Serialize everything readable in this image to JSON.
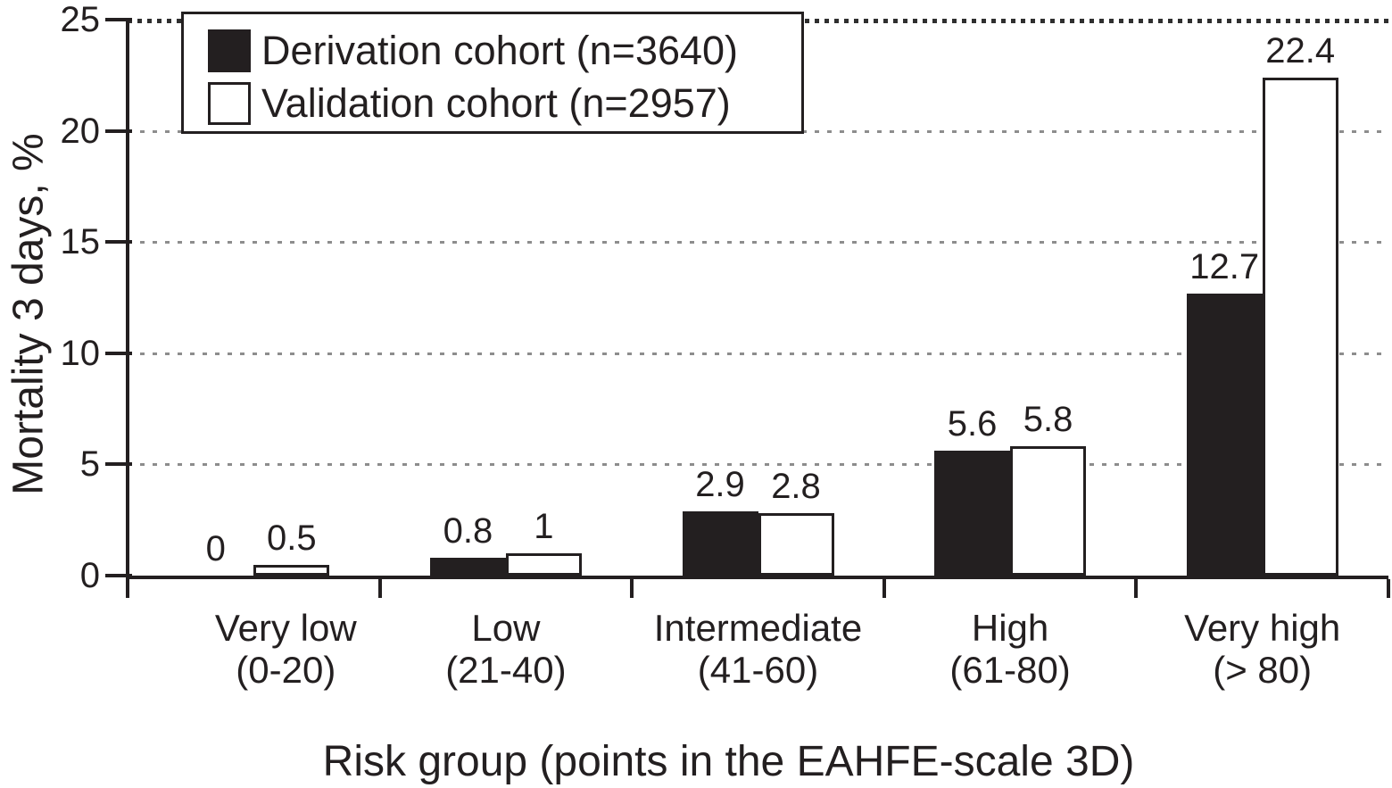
{
  "chart_data": {
    "type": "bar",
    "title": "",
    "xlabel": "Risk group (points in the EAHFE-scale 3D)",
    "ylabel": "Mortality 3 days, %",
    "ylim": [
      0,
      25
    ],
    "yticks": [
      {
        "label": "0",
        "value": 0
      },
      {
        "label": "5",
        "value": 5
      },
      {
        "label": "10",
        "value": 10
      },
      {
        "label": "15",
        "value": 15
      },
      {
        "label": "20",
        "value": 20
      },
      {
        "label": "25",
        "value": 25
      }
    ],
    "grid": "dotted-horizontal",
    "legend_position": "top-left-inside",
    "categories": [
      {
        "name": "Very low",
        "range": "(0-20)"
      },
      {
        "name": "Low",
        "range": "(21-40)"
      },
      {
        "name": "Intermediate",
        "range": "(41-60)"
      },
      {
        "name": "High",
        "range": "(61-80)"
      },
      {
        "name": "Very high",
        "range": "(> 80)"
      }
    ],
    "series": [
      {
        "name": "Derivation cohort (n=3640)",
        "style": "black",
        "values": [
          0,
          0.8,
          2.9,
          5.6,
          12.7
        ],
        "labels": [
          "0",
          "0.8",
          "2.9",
          "5.6",
          "12.7"
        ]
      },
      {
        "name": "Validation cohort (n=2957)",
        "style": "white",
        "values": [
          0.5,
          1,
          2.8,
          5.8,
          22.4
        ],
        "labels": [
          "0.5",
          "1",
          "2.8",
          "5.8",
          "22.4"
        ]
      }
    ],
    "colors": {
      "bar_fill_black": "#231f20",
      "bar_fill_white": "#ffffff",
      "bar_border": "#231f20",
      "grid_light": "#8d8d8d",
      "grid_top": "#2f2f2f",
      "text": "#231f20",
      "background": "#ffffff"
    }
  }
}
